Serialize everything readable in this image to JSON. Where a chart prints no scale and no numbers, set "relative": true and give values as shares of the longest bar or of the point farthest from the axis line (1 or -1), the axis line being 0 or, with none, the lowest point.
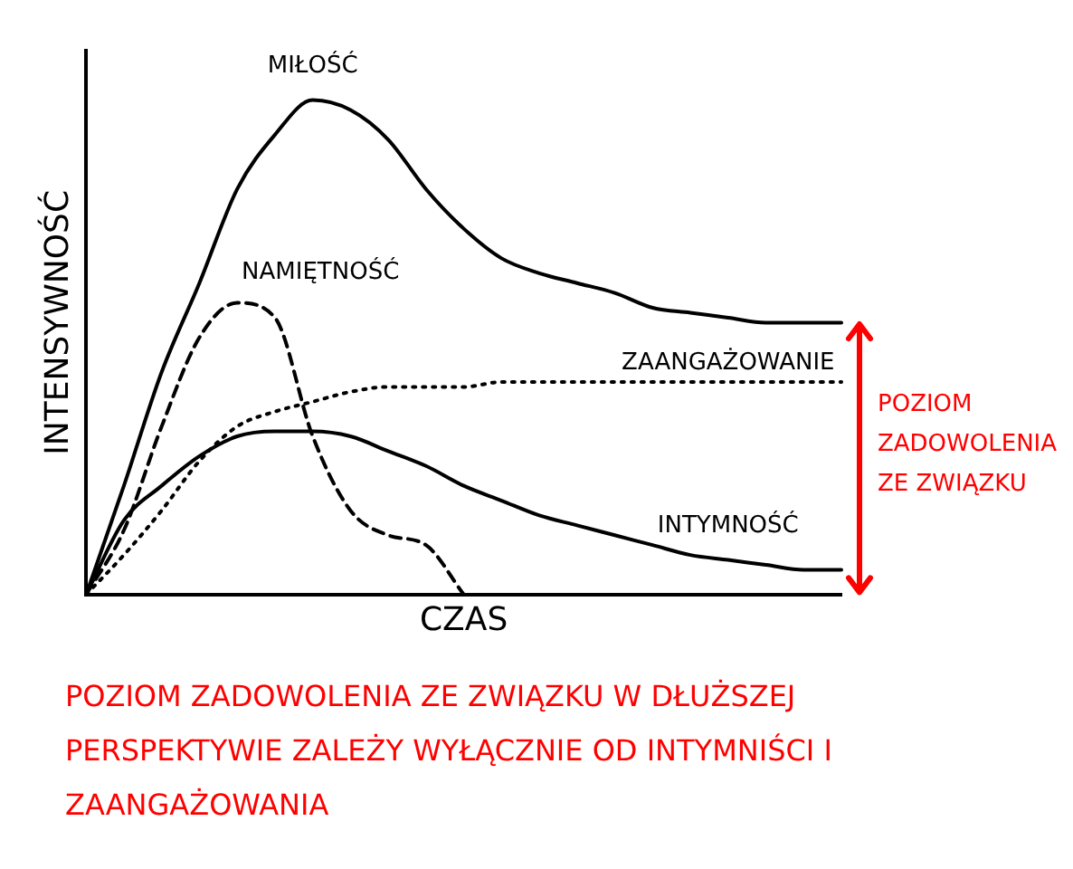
{
  "chart_data": {
    "type": "line",
    "relative": true,
    "xlabel": "CZAS",
    "ylabel": "INTENSYWNOŚĆ",
    "legend": false,
    "categories": [
      null,
      null,
      null,
      null,
      null,
      null,
      null,
      null,
      null,
      null,
      null,
      null,
      null,
      null,
      null,
      null,
      null,
      null,
      null,
      null,
      null
    ],
    "series": [
      {
        "name": "MIŁOŚĆ",
        "color": "#000000",
        "line_style": "solid",
        "values": [
          0,
          0.22,
          0.45,
          0.63,
          0.82,
          0.93,
          1,
          0.98,
          0.92,
          0.82,
          0.74,
          0.68,
          0.65,
          0.63,
          0.61,
          0.58,
          0.57,
          0.56,
          0.55,
          0.55,
          0.55
        ]
      },
      {
        "name": "NAMIĘTNOŚĆ",
        "color": "#000000",
        "line_style": "dashed",
        "values": [
          0,
          0.13,
          0.34,
          0.52,
          0.59,
          0.56,
          0.32,
          0.17,
          0.12,
          0.1,
          0,
          null,
          null,
          null,
          null,
          null,
          null,
          null,
          null,
          null,
          null
        ]
      },
      {
        "name": "ZAANGAŻOWANIE",
        "color": "#000000",
        "line_style": "dotted",
        "values": [
          0,
          0.08,
          0.17,
          0.27,
          0.34,
          0.37,
          0.39,
          0.41,
          0.42,
          0.42,
          0.42,
          0.43,
          0.43,
          0.43,
          0.43,
          0.43,
          0.43,
          0.43,
          0.43,
          0.43,
          0.43
        ]
      },
      {
        "name": "INTYMNOŚĆ",
        "color": "#000000",
        "line_style": "solid",
        "values": [
          0,
          0.15,
          0.22,
          0.28,
          0.32,
          0.33,
          0.33,
          0.32,
          0.29,
          0.26,
          0.22,
          0.19,
          0.16,
          0.14,
          0.12,
          0.1,
          0.08,
          0.07,
          0.06,
          0.05,
          0.05
        ]
      }
    ],
    "annotations": [
      "POZIOM ZADOWOLENIA ZE ZWIĄZKU",
      "POZIOM ZADOWOLENIA ZE ZWIĄZKU W DŁUŻSZEJ PERSPEKTYWIE ZALEŻY WYŁĄCZNIE OD INTYMNIŚCI I ZAANGAŻOWANIA"
    ]
  }
}
